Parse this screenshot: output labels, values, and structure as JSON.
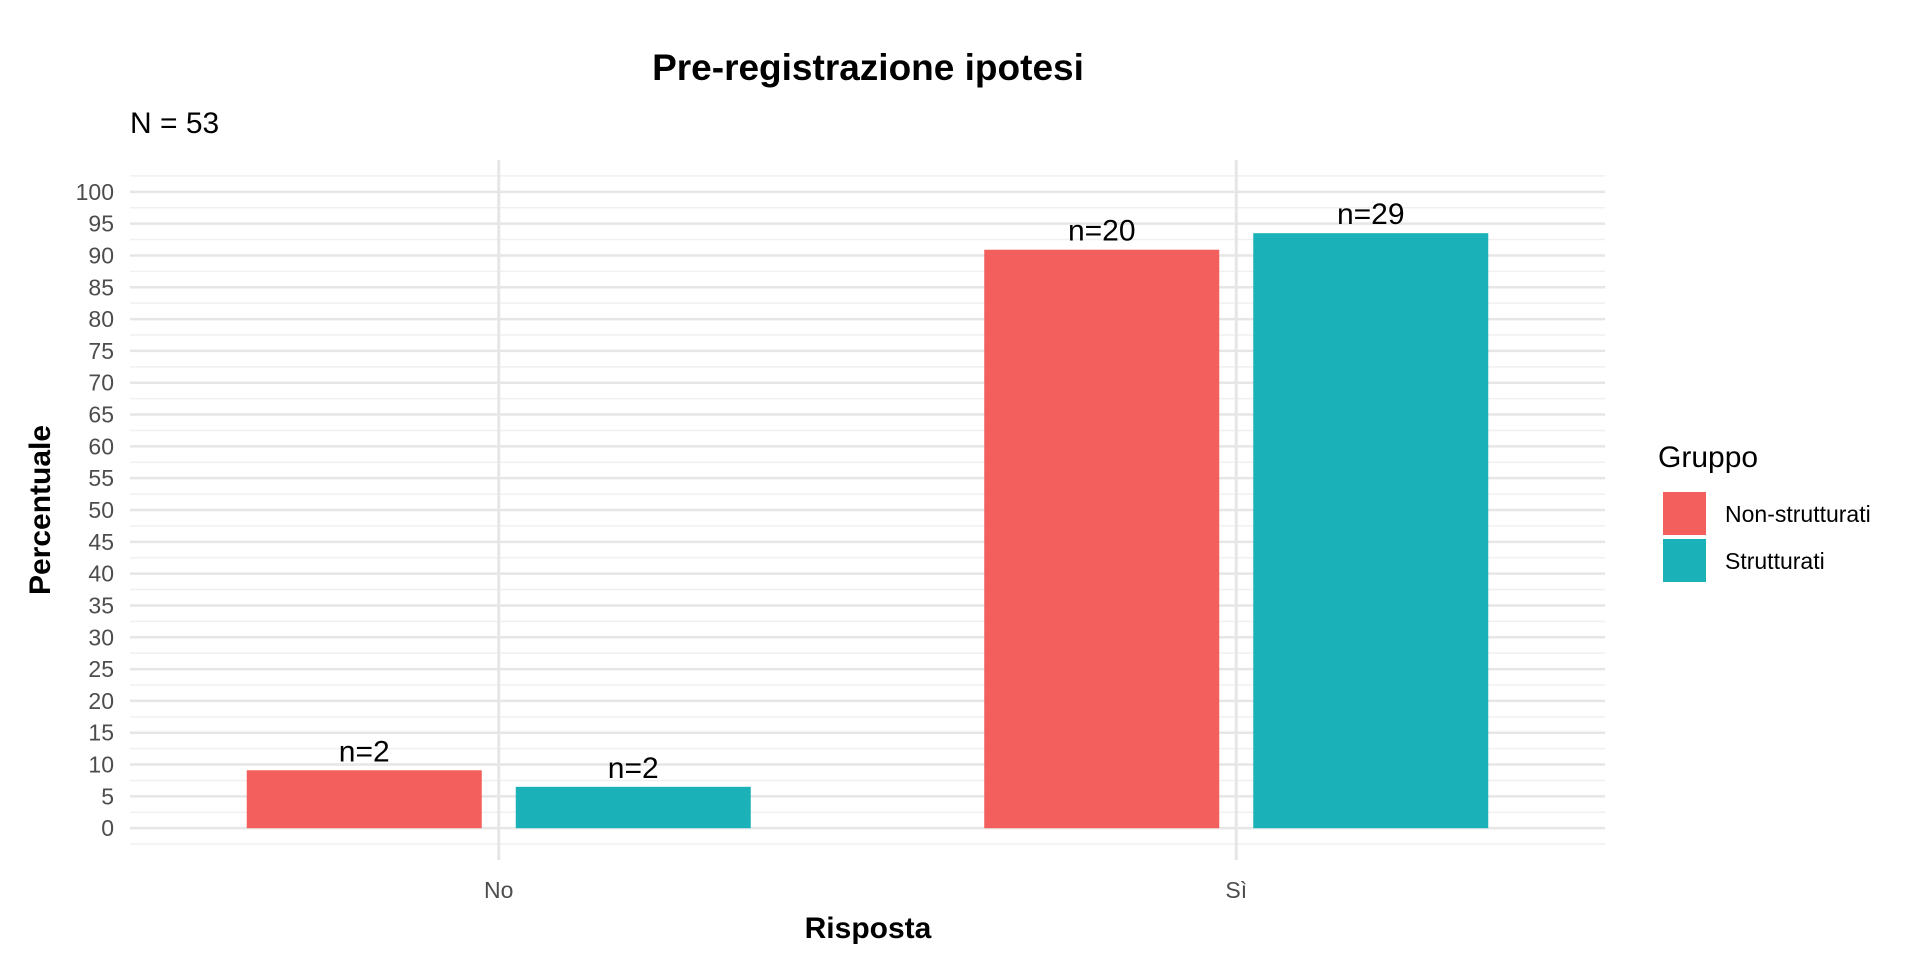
{
  "chart_data": {
    "type": "bar",
    "title": "Pre-registrazione ipotesi",
    "subtitle": "N = 53",
    "xlabel": "Risposta",
    "ylabel": "Percentuale",
    "categories": [
      "No",
      "Sì"
    ],
    "series": [
      {
        "name": "Non-strutturati",
        "color": "#F25F5C",
        "values": [
          9.1,
          90.9
        ],
        "labels": [
          "n=2",
          "n=20"
        ]
      },
      {
        "name": "Strutturati",
        "color": "#1AB2B8",
        "values": [
          6.5,
          93.5
        ],
        "labels": [
          "n=2",
          "n=29"
        ]
      }
    ],
    "yticks": [
      0,
      5,
      10,
      15,
      20,
      25,
      30,
      35,
      40,
      45,
      50,
      55,
      60,
      65,
      70,
      75,
      80,
      85,
      90,
      95,
      100
    ],
    "ylim": [
      -5,
      105
    ],
    "grid": true,
    "legend": {
      "title": "Gruppo",
      "placement": "right"
    }
  }
}
